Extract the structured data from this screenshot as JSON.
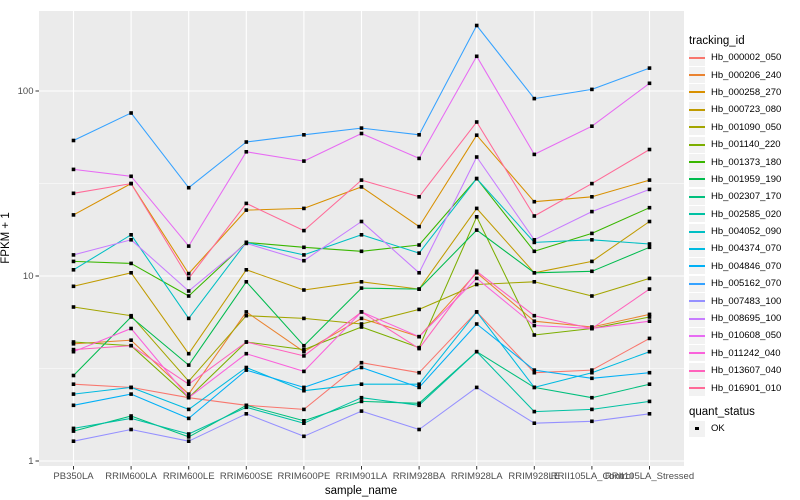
{
  "chart_data": {
    "type": "line",
    "title": "",
    "xlabel": "sample_name",
    "ylabel": "FPKM + 1",
    "y_scale": "log10",
    "y_ticks": [
      1,
      10,
      100
    ],
    "y_minor_ticks": [
      3.162,
      31.62
    ],
    "ylim": [
      0.94,
      280
    ],
    "grid": "white major/minor on gray panel",
    "legend_position": "right",
    "point_marker": "filled-square",
    "point_color": "#000000",
    "categories": [
      "PB350LA",
      "RRIM600LA",
      "RRIM600LE",
      "RRIM600SE",
      "RRIM600PE",
      "RRIM901LA",
      "RRIM928BA",
      "RRIM928LA",
      "RRIM928LE",
      "RRII105LA_Control",
      "RRII105LA_Stressed"
    ],
    "series": [
      {
        "name": "Hb_000002_050",
        "color": "#F8766D",
        "values": [
          2.6,
          2.5,
          2.2,
          2.0,
          1.9,
          3.4,
          3.0,
          6.4,
          3.0,
          3.1,
          4.6
        ]
      },
      {
        "name": "Hb_000206_240",
        "color": "#EA8331",
        "values": [
          4.3,
          4.5,
          2.3,
          6.4,
          3.9,
          5.9,
          4.7,
          10.4,
          5.7,
          5.3,
          6.2
        ]
      },
      {
        "name": "Hb_000258_270",
        "color": "#D89000",
        "values": [
          21.4,
          31.6,
          10.3,
          22.7,
          23.2,
          30.3,
          18.5,
          57.7,
          25.2,
          26.8,
          33.0
        ]
      },
      {
        "name": "Hb_000723_080",
        "color": "#C09B00",
        "values": [
          8.8,
          10.4,
          3.8,
          10.8,
          8.4,
          9.3,
          8.5,
          23.2,
          10.4,
          12.0,
          19.7
        ]
      },
      {
        "name": "Hb_001090_050",
        "color": "#A3A500",
        "values": [
          6.8,
          6.1,
          2.7,
          6.1,
          5.9,
          5.5,
          6.6,
          9.0,
          9.3,
          7.8,
          9.7
        ]
      },
      {
        "name": "Hb_001140_220",
        "color": "#7CAE00",
        "values": [
          4.4,
          4.2,
          2.2,
          4.4,
          4.0,
          5.3,
          4.1,
          20.9,
          4.8,
          5.2,
          6.0
        ]
      },
      {
        "name": "Hb_001373_180",
        "color": "#39B600",
        "values": [
          12.0,
          11.7,
          7.8,
          15.2,
          14.3,
          13.6,
          14.7,
          33.6,
          13.6,
          17.0,
          23.4
        ]
      },
      {
        "name": "Hb_001959_190",
        "color": "#00BB4E",
        "values": [
          2.9,
          6.0,
          3.3,
          9.3,
          4.2,
          8.6,
          8.5,
          17.7,
          10.4,
          10.6,
          14.3
        ]
      },
      {
        "name": "Hb_002307_170",
        "color": "#00BF7D",
        "values": [
          1.45,
          1.75,
          1.35,
          2.0,
          1.65,
          2.1,
          2.05,
          3.9,
          2.5,
          2.2,
          2.6
        ]
      },
      {
        "name": "Hb_002585_020",
        "color": "#00C1A3",
        "values": [
          1.5,
          1.7,
          1.4,
          1.95,
          1.6,
          2.2,
          2.0,
          3.9,
          1.85,
          1.9,
          2.1
        ]
      },
      {
        "name": "Hb_004052_090",
        "color": "#00BFC4",
        "values": [
          10.8,
          16.7,
          5.9,
          15.2,
          13.0,
          16.7,
          13.3,
          33.6,
          15.2,
          15.7,
          14.9
        ]
      },
      {
        "name": "Hb_004374_070",
        "color": "#00BAE0",
        "values": [
          2.3,
          2.5,
          1.9,
          3.2,
          2.4,
          2.6,
          2.6,
          6.4,
          2.5,
          3.0,
          3.9
        ]
      },
      {
        "name": "Hb_004846_070",
        "color": "#00B0F6",
        "values": [
          2.0,
          2.3,
          1.7,
          3.1,
          2.5,
          3.2,
          2.5,
          5.5,
          3.1,
          2.8,
          3.0
        ]
      },
      {
        "name": "Hb_005162_070",
        "color": "#35A2FF",
        "values": [
          54,
          76,
          30,
          53,
          58,
          63,
          58,
          226,
          91,
          102,
          133
        ]
      },
      {
        "name": "Hb_007483_100",
        "color": "#9590FF",
        "values": [
          1.28,
          1.48,
          1.28,
          1.8,
          1.36,
          1.86,
          1.48,
          2.5,
          1.6,
          1.64,
          1.8
        ]
      },
      {
        "name": "Hb_008695_100",
        "color": "#C77CFF",
        "values": [
          13.0,
          15.7,
          8.3,
          15.0,
          12.1,
          19.7,
          10.4,
          44,
          15.7,
          22.3,
          29.4
        ]
      },
      {
        "name": "Hb_010608_050",
        "color": "#E76BF3",
        "values": [
          37.7,
          34.6,
          14.5,
          46.9,
          41.8,
          58.9,
          43.2,
          154,
          45.4,
          64.5,
          110
        ]
      },
      {
        "name": "Hb_011242_040",
        "color": "#FA62DB",
        "values": [
          3.9,
          5.2,
          2.2,
          3.8,
          3.05,
          6.4,
          4.7,
          9.7,
          5.4,
          5.2,
          5.7
        ]
      },
      {
        "name": "Hb_013607_040",
        "color": "#FF62BC",
        "values": [
          4.0,
          4.2,
          2.6,
          4.4,
          3.7,
          6.4,
          4.05,
          10.6,
          6.1,
          5.2,
          8.5
        ]
      },
      {
        "name": "Hb_016901_010",
        "color": "#FF6A98",
        "values": [
          28,
          31.6,
          9.7,
          24.7,
          17.6,
          33,
          26.8,
          68,
          21.1,
          31.6,
          48.3
        ]
      }
    ],
    "legend": {
      "title": "tracking_id",
      "quant_status_title": "quant_status",
      "quant_status_value": "OK",
      "quant_marker": "filled-square",
      "quant_marker_color": "#000000"
    }
  },
  "colors": {
    "background": "#FFFFFF",
    "panel_bg": "#EBEBEB",
    "grid": "#FFFFFF",
    "legend_key_bg": "#F2F2F2",
    "tick_label": "#4D4D4D",
    "axis_title": "#000000"
  }
}
